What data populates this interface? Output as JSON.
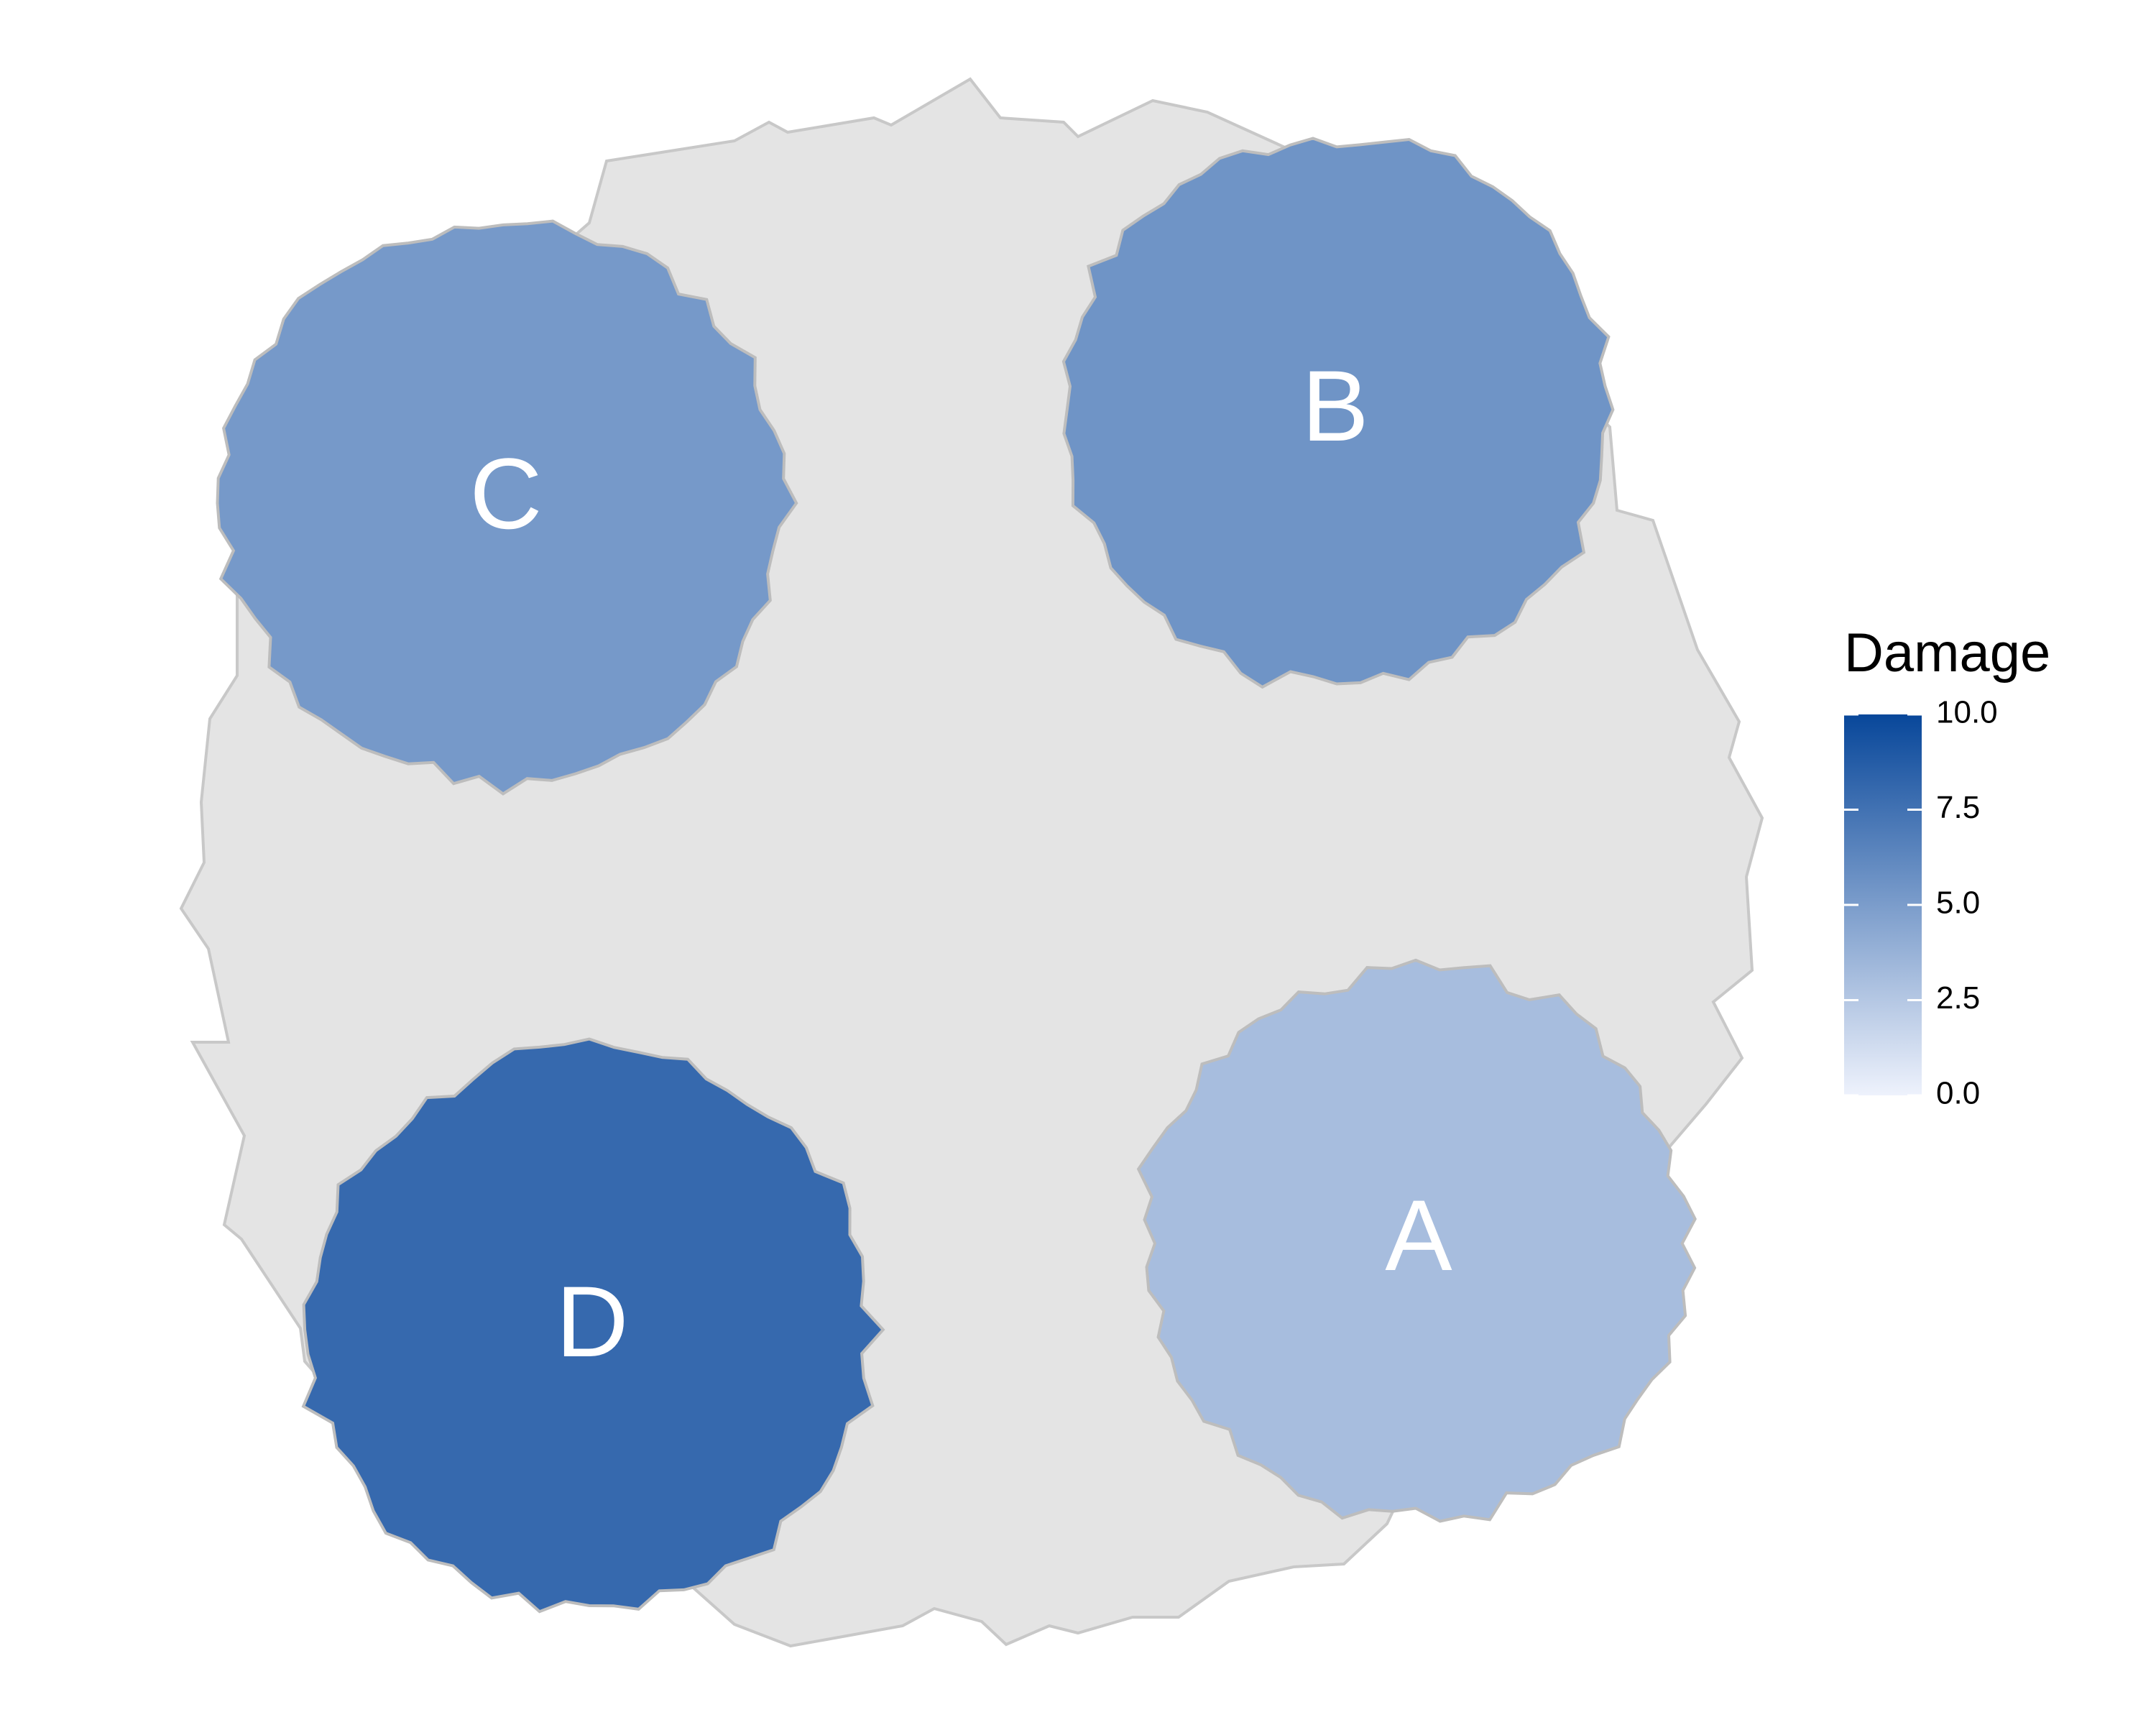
{
  "chart_data": {
    "type": "choropleth",
    "title": "",
    "legend": {
      "title": "Damage",
      "placement": "right",
      "min": 0,
      "max": 10,
      "ticks": [
        "0.0",
        "2.5",
        "5.0",
        "7.5",
        "10.0"
      ],
      "tick_values": [
        0,
        2.5,
        5,
        7.5,
        10
      ],
      "color_low": "#eef2fc",
      "color_high": "#08479a"
    },
    "background_color": "#e4e4e4",
    "outline_color": "#bdbdbd",
    "regions": [
      {
        "label": "A",
        "value": 3.1
      },
      {
        "label": "B",
        "value": 5.5
      },
      {
        "label": "C",
        "value": 5.2
      },
      {
        "label": "D",
        "value": 8.0
      }
    ]
  }
}
